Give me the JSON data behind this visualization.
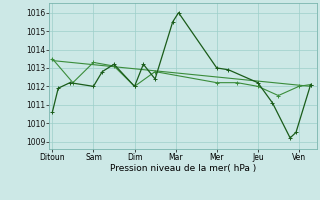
{
  "title": "",
  "xlabel": "Pression niveau de la mer( hPa )",
  "ylabel": "",
  "bg_color": "#cce8e6",
  "grid_color": "#9ecfca",
  "line_color_dark": "#1a5c1a",
  "line_color_light": "#3a8c3a",
  "ylim": [
    1008.6,
    1016.5
  ],
  "yticks": [
    1009,
    1010,
    1011,
    1012,
    1013,
    1014,
    1015,
    1016
  ],
  "xtick_labels": [
    "Ditoun",
    "Sam",
    "Dim",
    "Mar",
    "Mer",
    "Jeu",
    "Ven"
  ],
  "xtick_positions": [
    0,
    14,
    28,
    42,
    56,
    70,
    84
  ],
  "xlim": [
    -1,
    90
  ],
  "series1": {
    "x": [
      0,
      2,
      6,
      14,
      17,
      21,
      28,
      31,
      35,
      41,
      43,
      56,
      60,
      70,
      75,
      81,
      83,
      88
    ],
    "y": [
      1010.6,
      1011.9,
      1012.2,
      1012.0,
      1012.8,
      1013.2,
      1012.0,
      1013.2,
      1012.4,
      1015.5,
      1016.0,
      1013.0,
      1012.9,
      1012.2,
      1011.1,
      1009.2,
      1009.5,
      1012.1
    ]
  },
  "series2": {
    "x": [
      0,
      7,
      14,
      21,
      28,
      35,
      56,
      63,
      70,
      77,
      84,
      88
    ],
    "y": [
      1013.5,
      1012.2,
      1013.3,
      1013.1,
      1012.0,
      1012.8,
      1012.2,
      1012.2,
      1012.0,
      1011.5,
      1012.0,
      1012.1
    ]
  },
  "series3": {
    "x": [
      0,
      88
    ],
    "y": [
      1013.4,
      1012.0
    ]
  }
}
